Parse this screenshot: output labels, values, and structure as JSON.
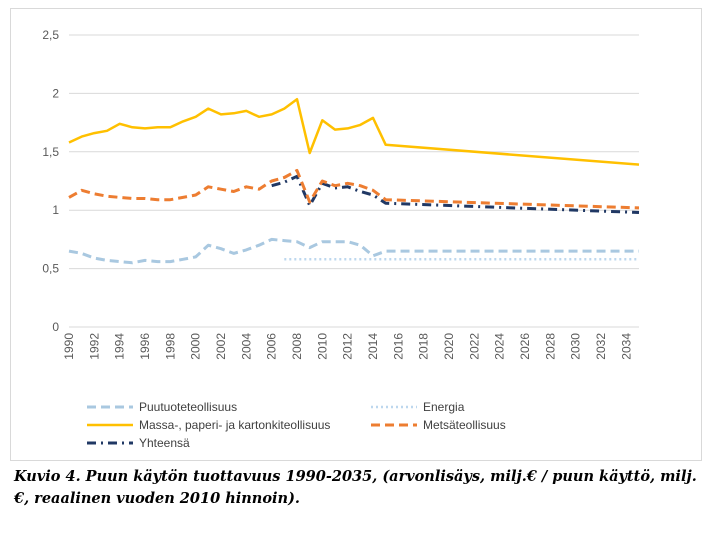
{
  "caption": "Kuvio 4. Puun käytön tuottavuus 1990-2035, (arvonlisäys, milj.€ / puun käyttö, milj.€, reaalinen vuoden 2010 hinnoin).",
  "chart_data": {
    "type": "line",
    "ylim": [
      0,
      2.5
    ],
    "xlim": [
      1990,
      2035
    ],
    "y_ticks": [
      "0",
      "0,5",
      "1",
      "1,5",
      "2",
      "2,5"
    ],
    "y_tick_values": [
      0,
      0.5,
      1,
      1.5,
      2,
      2.5
    ],
    "x_ticks": [
      "1990",
      "1992",
      "1994",
      "1996",
      "1998",
      "2000",
      "2002",
      "2004",
      "2006",
      "2008",
      "2010",
      "2012",
      "2014",
      "2016",
      "2018",
      "2020",
      "2022",
      "2024",
      "2026",
      "2028",
      "2030",
      "2032",
      "2034"
    ],
    "grid": "horizontal",
    "legend_position": "bottom",
    "legend": [
      "Puutuoteteollisuus",
      "Energia",
      "Massa-, paperi- ja kartonkiteollisuus",
      "Metsäteollisuus",
      "Yhteensä"
    ],
    "series": [
      {
        "name": "Puutuoteteollisuus",
        "color": "#a9c8e0",
        "style": "dashed",
        "x": [
          1990,
          1991,
          1992,
          1993,
          1994,
          1995,
          1996,
          1997,
          1998,
          1999,
          2000,
          2001,
          2002,
          2003,
          2004,
          2005,
          2006,
          2007,
          2008,
          2009,
          2010,
          2011,
          2012,
          2013,
          2014,
          2015,
          2035
        ],
        "y": [
          0.65,
          0.63,
          0.59,
          0.57,
          0.56,
          0.55,
          0.57,
          0.56,
          0.56,
          0.58,
          0.6,
          0.7,
          0.67,
          0.63,
          0.66,
          0.7,
          0.75,
          0.74,
          0.73,
          0.68,
          0.73,
          0.73,
          0.73,
          0.7,
          0.61,
          0.65,
          0.65
        ]
      },
      {
        "name": "Energia",
        "color": "#bdd7ee",
        "style": "dotted",
        "x": [
          2007,
          2035
        ],
        "y": [
          0.58,
          0.58
        ]
      },
      {
        "name": "Massa-, paperi- ja kartonkiteollisuus",
        "color": "#ffc000",
        "style": "solid",
        "x": [
          1990,
          1991,
          1992,
          1993,
          1994,
          1995,
          1996,
          1997,
          1998,
          1999,
          2000,
          2001,
          2002,
          2003,
          2004,
          2005,
          2006,
          2007,
          2008,
          2009,
          2010,
          2011,
          2012,
          2013,
          2014,
          2015,
          2035
        ],
        "y": [
          1.58,
          1.63,
          1.66,
          1.68,
          1.74,
          1.71,
          1.7,
          1.71,
          1.71,
          1.76,
          1.8,
          1.87,
          1.82,
          1.83,
          1.85,
          1.8,
          1.82,
          1.87,
          1.95,
          1.49,
          1.77,
          1.69,
          1.7,
          1.73,
          1.79,
          1.56,
          1.39
        ]
      },
      {
        "name": "Metsäteollisuus",
        "color": "#ed7d31",
        "style": "dashed",
        "x": [
          1990,
          1991,
          1992,
          1993,
          1994,
          1995,
          1996,
          1997,
          1998,
          1999,
          2000,
          2001,
          2002,
          2003,
          2004,
          2005,
          2006,
          2007,
          2008,
          2009,
          2010,
          2011,
          2012,
          2013,
          2014,
          2015,
          2035
        ],
        "y": [
          1.11,
          1.17,
          1.14,
          1.12,
          1.11,
          1.1,
          1.1,
          1.09,
          1.09,
          1.11,
          1.13,
          1.2,
          1.18,
          1.16,
          1.2,
          1.18,
          1.25,
          1.28,
          1.34,
          1.07,
          1.25,
          1.21,
          1.23,
          1.21,
          1.17,
          1.09,
          1.02
        ]
      },
      {
        "name": "Yhteensä",
        "color": "#203864",
        "style": "dashdot",
        "x": [
          2006,
          2007,
          2008,
          2009,
          2010,
          2011,
          2012,
          2013,
          2014,
          2015,
          2035
        ],
        "y": [
          1.21,
          1.24,
          1.29,
          1.04,
          1.23,
          1.19,
          1.2,
          1.16,
          1.13,
          1.06,
          0.98
        ]
      }
    ]
  }
}
